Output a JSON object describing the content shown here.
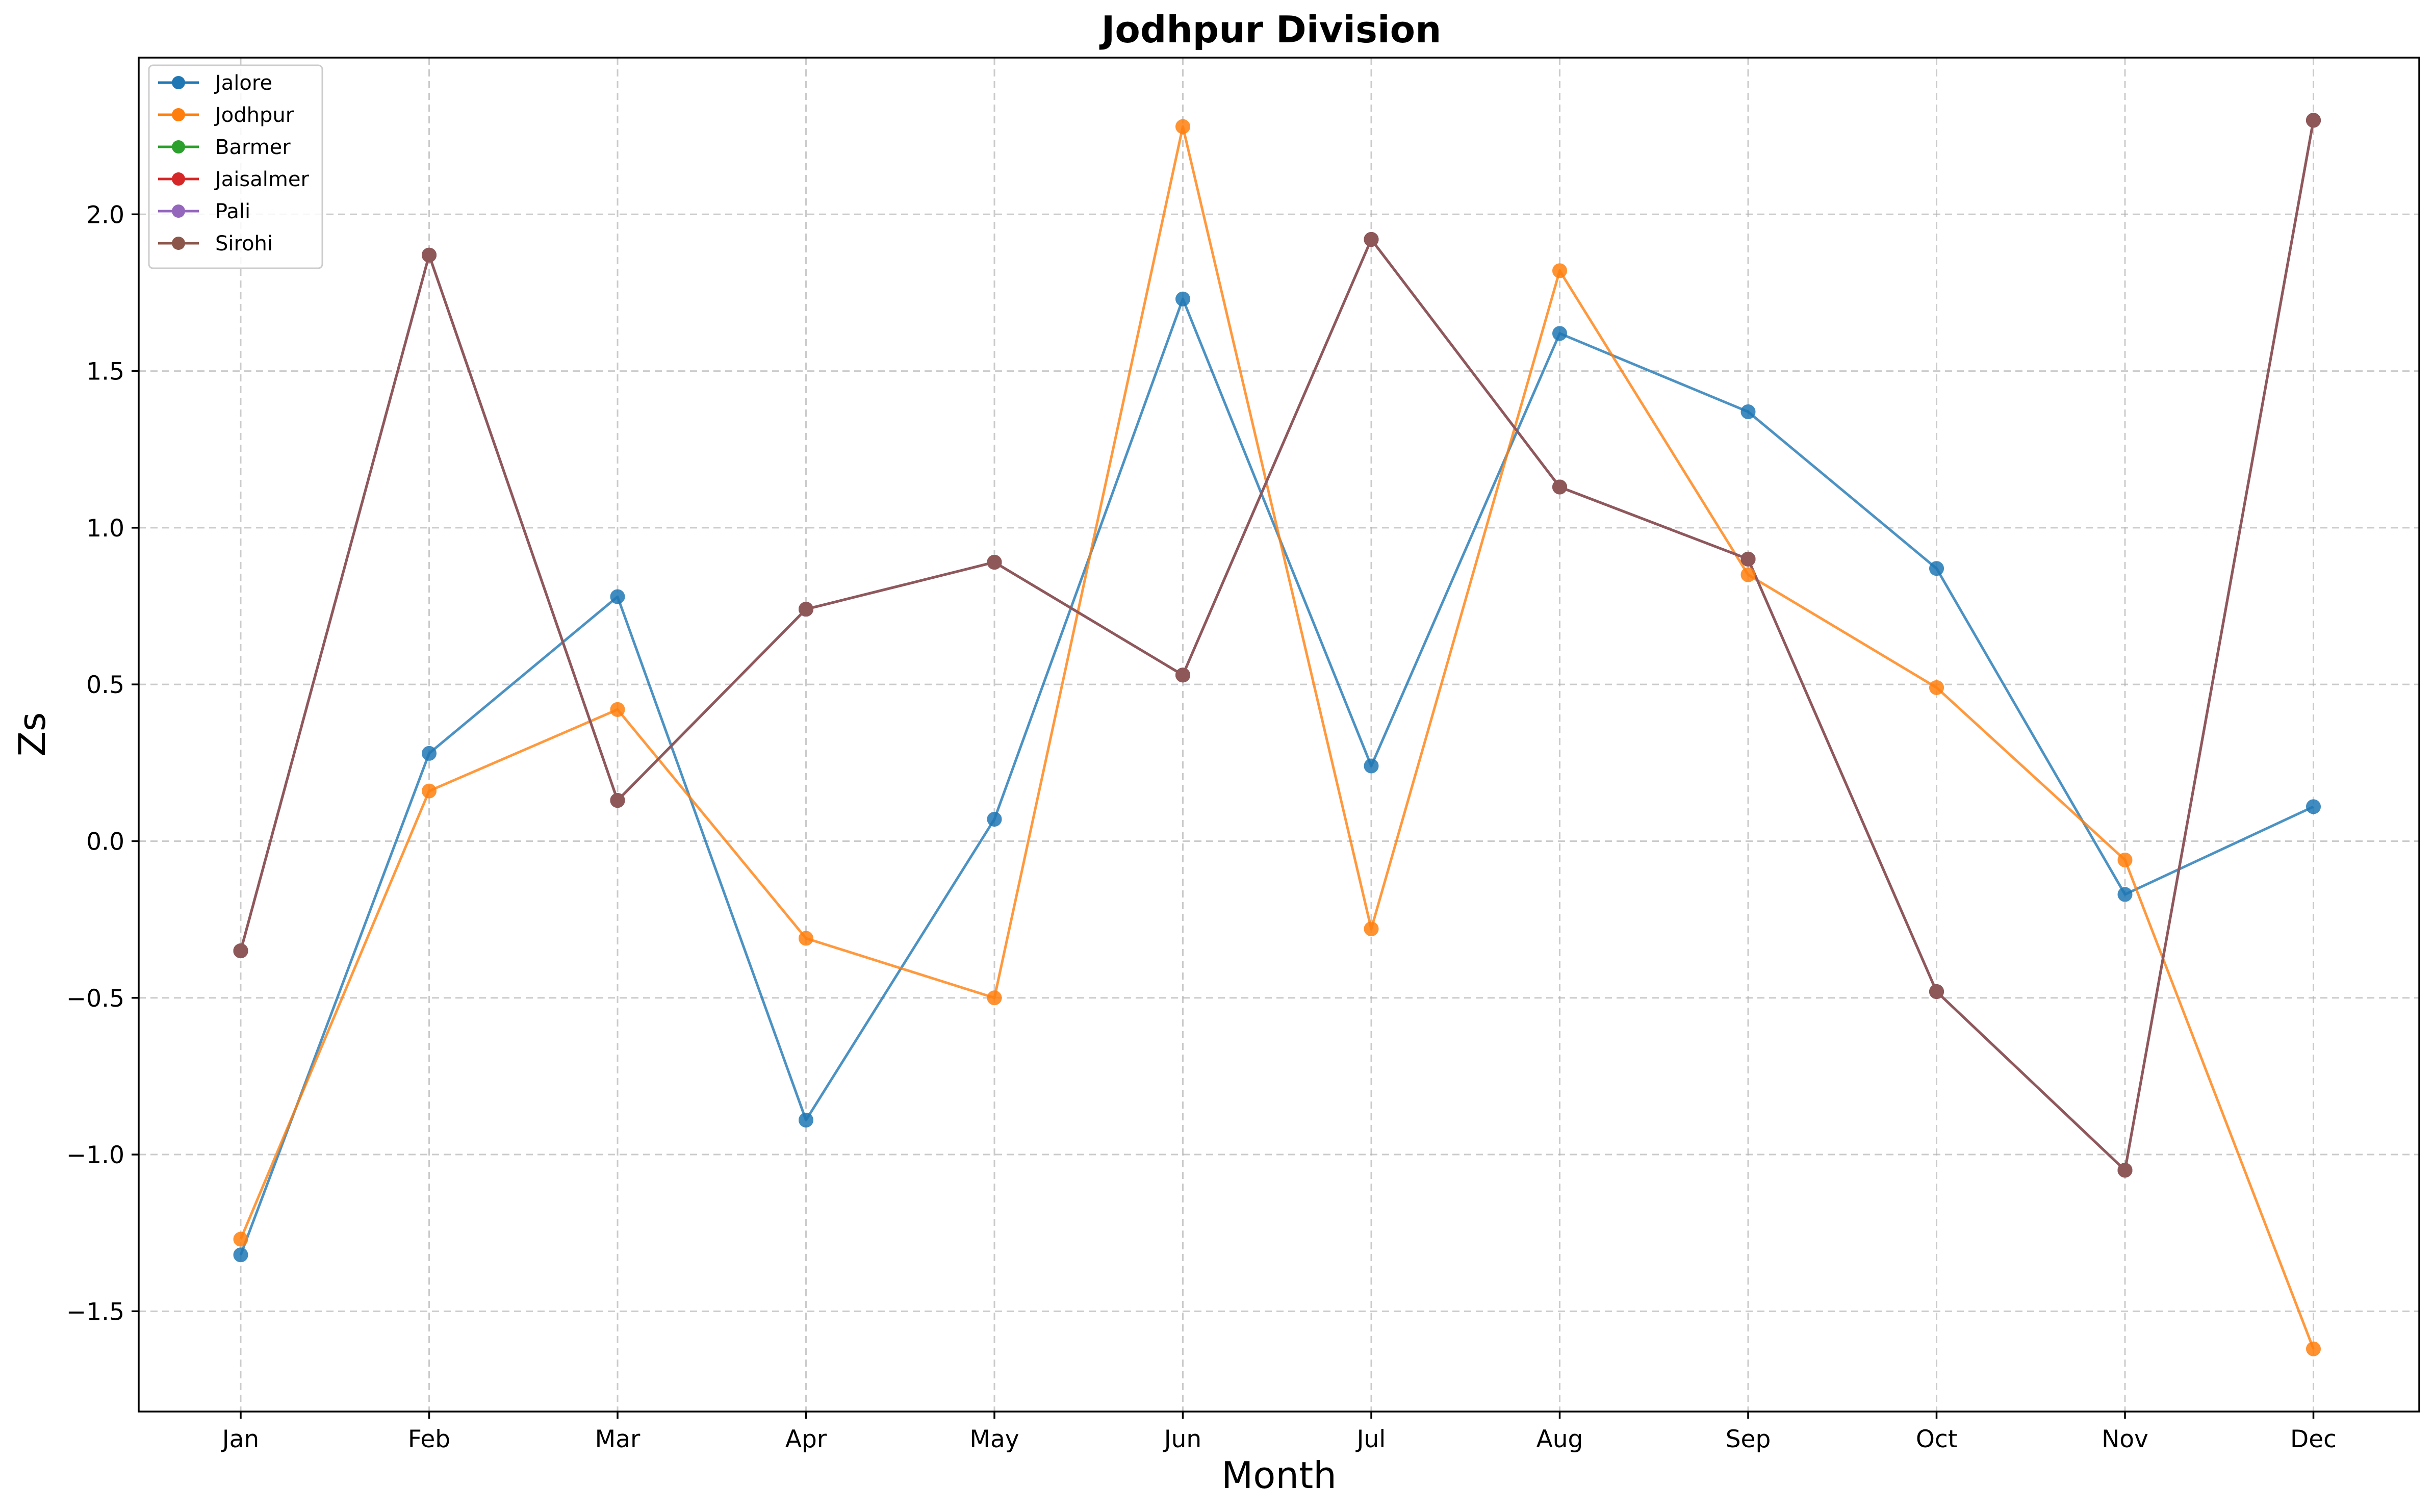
{
  "chart_data": {
    "type": "line",
    "title": "Jodhpur Division",
    "xlabel": "Month",
    "ylabel": "Zs",
    "categories": [
      "Jan",
      "Feb",
      "Mar",
      "Apr",
      "May",
      "Jun",
      "Jul",
      "Aug",
      "Sep",
      "Oct",
      "Nov",
      "Dec"
    ],
    "ylim": [
      -1.82,
      2.5
    ],
    "yticks": [
      -1.5,
      -1.0,
      -0.5,
      0.0,
      0.5,
      1.0,
      1.5,
      2.0
    ],
    "ytick_labels": [
      "−1.5",
      "−1.0",
      "−0.5",
      "0.0",
      "0.5",
      "1.0",
      "1.5",
      "2.0"
    ],
    "grid": true,
    "legend_position": "top-left",
    "series": [
      {
        "name": "Jalore",
        "color": "#1f77b4",
        "values": [
          -1.32,
          0.28,
          0.78,
          -0.89,
          0.07,
          1.73,
          0.24,
          1.62,
          1.37,
          0.87,
          -0.17,
          0.11
        ]
      },
      {
        "name": "Jodhpur",
        "color": "#ff7f0e",
        "values": [
          -1.27,
          0.16,
          0.42,
          -0.31,
          -0.5,
          2.28,
          -0.28,
          1.82,
          0.85,
          0.49,
          -0.06,
          -1.62
        ]
      },
      {
        "name": "Barmer",
        "color": "#2ca02c",
        "values": [
          -0.35,
          1.87,
          0.13,
          0.74,
          0.89,
          0.53,
          1.92,
          1.13,
          0.9,
          -0.48,
          -1.05,
          2.3
        ]
      },
      {
        "name": "Jaisalmer",
        "color": "#d62728",
        "values": [
          -0.35,
          1.87,
          0.13,
          0.74,
          0.89,
          0.53,
          1.92,
          1.13,
          0.9,
          -0.48,
          -1.05,
          2.3
        ]
      },
      {
        "name": "Pali",
        "color": "#9467bd",
        "values": [
          -0.35,
          1.87,
          0.13,
          0.74,
          0.89,
          0.53,
          1.92,
          1.13,
          0.9,
          -0.48,
          -1.05,
          2.3
        ]
      },
      {
        "name": "Sirohi",
        "color": "#8c564b",
        "values": [
          -0.35,
          1.87,
          0.13,
          0.74,
          0.89,
          0.53,
          1.92,
          1.13,
          0.9,
          -0.48,
          -1.05,
          2.3
        ]
      }
    ]
  }
}
